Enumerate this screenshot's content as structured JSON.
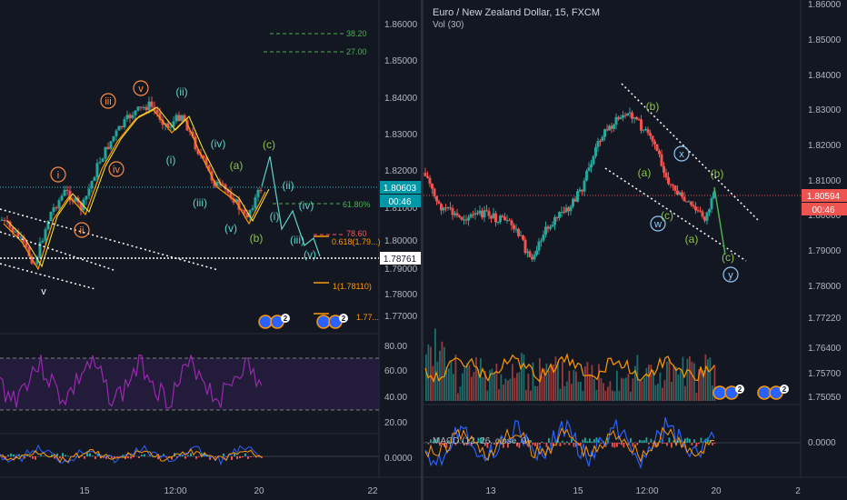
{
  "left": {
    "price_ticks": [
      "1.86000",
      "1.85000",
      "1.84000",
      "1.83000",
      "1.82000",
      "1.81000",
      "1.80000",
      "1.79000",
      "1.78000",
      "1.77000"
    ],
    "current_price": "1.80603",
    "countdown": "00:46",
    "line_price": "1.78761",
    "rsi_ticks": [
      "80.00",
      "60.00",
      "40.00",
      "20.00"
    ],
    "macd_ticks": [
      "0.0000"
    ],
    "time_labels": [
      "15",
      "12:00",
      "20",
      "22"
    ],
    "fib_labels": [
      "38.20",
      "27.00",
      "61.80%",
      "78.60",
      "0.618(1.79...)",
      "1(1.78110)",
      "1.77..."
    ],
    "wave_labels": {
      "orange": [
        "i",
        "ii",
        "iii",
        "iv",
        "v"
      ],
      "teal": [
        "(ii)",
        "(i)",
        "(iii)",
        "(iv)",
        "(v)",
        "(i)",
        "(ii)",
        "(iii)",
        "(iv)",
        "(v)"
      ],
      "green": [
        "(a)",
        "(b)",
        "(c)"
      ],
      "white": [
        "v"
      ]
    },
    "badge_count": "2"
  },
  "right": {
    "title": "Euro / New Zealand Dollar, 15, FXCM",
    "volume_label": "Vol (30)",
    "price_ticks": [
      "1.86000",
      "1.85000",
      "1.84000",
      "1.83000",
      "1.82000",
      "1.81000",
      "1.80000",
      "1.79000",
      "1.78000",
      "1.77220",
      "1.76400",
      "1.75700",
      "1.75050"
    ],
    "current_price": "1.80594",
    "countdown": "00:46",
    "macd_label": "MACD (12, 26, close, 9)",
    "macd_ticks": [
      "0.0000"
    ],
    "time_labels": [
      "13",
      "15",
      "12:00",
      "20",
      "2"
    ],
    "wave_labels": {
      "green": [
        "(b)",
        "(a)",
        "(c)",
        "(a)",
        "(b)",
        "(c)"
      ],
      "circled": [
        "w",
        "x",
        "y"
      ]
    },
    "badge_count": "2"
  },
  "colors": {
    "background": "#131722",
    "up": "#26a69a",
    "down": "#ef5350",
    "rsi": "#9c27b0",
    "fib_green": "#4caf50",
    "orange": "#ff8c42",
    "teal": "#5fd3c9",
    "wave_green": "#8bc34a"
  }
}
